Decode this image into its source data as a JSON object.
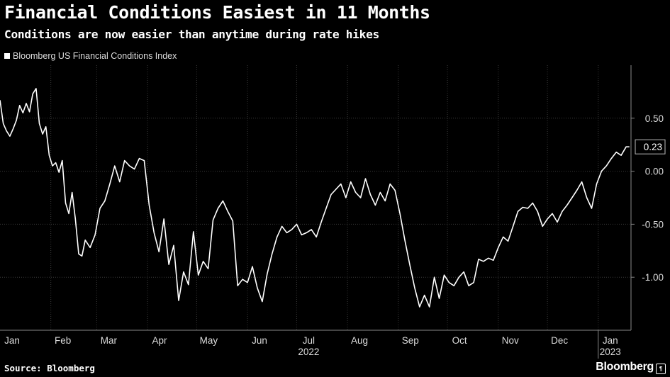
{
  "header": {
    "title": "Financial Conditions Easiest in 11 Months",
    "subtitle": "Conditions are now easier than anytime during rate hikes"
  },
  "legend": {
    "label": "Bloomberg US Financial Conditions Index",
    "color": "#ffffff"
  },
  "footer": {
    "source": "Source: Bloomberg",
    "brand": "Bloomberg",
    "brand_mark_icon": "bloomberg-pilcrow-icon"
  },
  "colors": {
    "background": "#000000",
    "line": "#ffffff",
    "grid": "#3a3a3a",
    "axis_text": "#dcdcdc"
  },
  "chart_data": {
    "type": "line",
    "title": "Financial Conditions Easiest in 11 Months",
    "subtitle": "Conditions are now easier than anytime during rate hikes",
    "xlabel": "",
    "ylabel": "",
    "ylim": [
      -1.5,
      1.0
    ],
    "yticks": [
      0.5,
      0.0,
      -0.5,
      -1.0
    ],
    "ytick_labels": [
      "0.50",
      "0.00",
      "-0.50",
      "-1.00"
    ],
    "x_range": [
      "2022-01-01",
      "2023-01-21"
    ],
    "xticks": [
      {
        "label": "Jan",
        "date": "2022-01-01"
      },
      {
        "label": "Feb",
        "date": "2022-02-01"
      },
      {
        "label": "Mar",
        "date": "2022-03-01"
      },
      {
        "label": "Apr",
        "date": "2022-04-01"
      },
      {
        "label": "May",
        "date": "2022-05-01"
      },
      {
        "label": "Jun",
        "date": "2022-06-01"
      },
      {
        "label": "Jul",
        "date": "2022-07-01"
      },
      {
        "label": "Aug",
        "date": "2022-08-01"
      },
      {
        "label": "Sep",
        "date": "2022-09-01"
      },
      {
        "label": "Oct",
        "date": "2022-10-01"
      },
      {
        "label": "Nov",
        "date": "2022-11-01"
      },
      {
        "label": "Dec",
        "date": "2022-12-01"
      },
      {
        "label": "Jan",
        "date": "2023-01-01"
      }
    ],
    "year_labels": [
      {
        "label": "2022",
        "date": "2022-07-01"
      },
      {
        "label": "2023",
        "date": "2023-01-01"
      }
    ],
    "grid": true,
    "last_value_label": "0.23",
    "series": [
      {
        "name": "Bloomberg US Financial Conditions Index",
        "x": [
          "2022-01-01",
          "2022-01-03",
          "2022-01-05",
          "2022-01-07",
          "2022-01-09",
          "2022-01-11",
          "2022-01-13",
          "2022-01-15",
          "2022-01-17",
          "2022-01-19",
          "2022-01-21",
          "2022-01-23",
          "2022-01-25",
          "2022-01-27",
          "2022-01-29",
          "2022-01-31",
          "2022-02-02",
          "2022-02-04",
          "2022-02-06",
          "2022-02-08",
          "2022-02-10",
          "2022-02-12",
          "2022-02-14",
          "2022-02-16",
          "2022-02-18",
          "2022-02-20",
          "2022-02-22",
          "2022-02-25",
          "2022-02-28",
          "2022-03-03",
          "2022-03-06",
          "2022-03-09",
          "2022-03-12",
          "2022-03-15",
          "2022-03-18",
          "2022-03-21",
          "2022-03-24",
          "2022-03-27",
          "2022-03-30",
          "2022-04-02",
          "2022-04-05",
          "2022-04-08",
          "2022-04-11",
          "2022-04-14",
          "2022-04-17",
          "2022-04-20",
          "2022-04-23",
          "2022-04-26",
          "2022-04-29",
          "2022-05-02",
          "2022-05-05",
          "2022-05-08",
          "2022-05-11",
          "2022-05-14",
          "2022-05-17",
          "2022-05-20",
          "2022-05-23",
          "2022-05-26",
          "2022-05-29",
          "2022-06-01",
          "2022-06-04",
          "2022-06-07",
          "2022-06-10",
          "2022-06-13",
          "2022-06-16",
          "2022-06-19",
          "2022-06-22",
          "2022-06-25",
          "2022-06-28",
          "2022-07-01",
          "2022-07-04",
          "2022-07-07",
          "2022-07-10",
          "2022-07-13",
          "2022-07-16",
          "2022-07-19",
          "2022-07-22",
          "2022-07-25",
          "2022-07-28",
          "2022-07-31",
          "2022-08-03",
          "2022-08-06",
          "2022-08-09",
          "2022-08-12",
          "2022-08-15",
          "2022-08-18",
          "2022-08-21",
          "2022-08-24",
          "2022-08-27",
          "2022-08-30",
          "2022-09-02",
          "2022-09-05",
          "2022-09-08",
          "2022-09-11",
          "2022-09-14",
          "2022-09-17",
          "2022-09-20",
          "2022-09-23",
          "2022-09-26",
          "2022-09-29",
          "2022-10-02",
          "2022-10-05",
          "2022-10-08",
          "2022-10-11",
          "2022-10-14",
          "2022-10-17",
          "2022-10-20",
          "2022-10-23",
          "2022-10-26",
          "2022-10-29",
          "2022-11-01",
          "2022-11-04",
          "2022-11-07",
          "2022-11-10",
          "2022-11-13",
          "2022-11-16",
          "2022-11-19",
          "2022-11-22",
          "2022-11-25",
          "2022-11-28",
          "2022-12-01",
          "2022-12-04",
          "2022-12-07",
          "2022-12-10",
          "2022-12-13",
          "2022-12-16",
          "2022-12-19",
          "2022-12-22",
          "2022-12-25",
          "2022-12-28",
          "2022-12-31",
          "2023-01-03",
          "2023-01-06",
          "2023-01-09",
          "2023-01-12",
          "2023-01-15",
          "2023-01-18",
          "2023-01-20"
        ],
        "values": [
          0.67,
          0.45,
          0.38,
          0.33,
          0.4,
          0.48,
          0.62,
          0.55,
          0.64,
          0.56,
          0.73,
          0.78,
          0.45,
          0.35,
          0.42,
          0.15,
          0.05,
          0.08,
          -0.01,
          0.1,
          -0.3,
          -0.4,
          -0.2,
          -0.45,
          -0.78,
          -0.8,
          -0.65,
          -0.72,
          -0.6,
          -0.35,
          -0.28,
          -0.12,
          0.05,
          -0.1,
          0.1,
          0.05,
          0.02,
          0.12,
          0.1,
          -0.32,
          -0.58,
          -0.76,
          -0.45,
          -0.88,
          -0.7,
          -1.22,
          -0.95,
          -1.07,
          -0.57,
          -0.98,
          -0.85,
          -0.92,
          -0.46,
          -0.35,
          -0.28,
          -0.38,
          -0.47,
          -1.08,
          -1.02,
          -1.05,
          -0.9,
          -1.1,
          -1.23,
          -0.97,
          -0.78,
          -0.62,
          -0.52,
          -0.58,
          -0.55,
          -0.5,
          -0.6,
          -0.58,
          -0.55,
          -0.62,
          -0.48,
          -0.35,
          -0.22,
          -0.17,
          -0.12,
          -0.25,
          -0.1,
          -0.2,
          -0.25,
          -0.07,
          -0.22,
          -0.32,
          -0.2,
          -0.28,
          -0.12,
          -0.18,
          -0.4,
          -0.65,
          -0.88,
          -1.1,
          -1.28,
          -1.17,
          -1.28,
          -1.0,
          -1.2,
          -0.98,
          -1.05,
          -1.08,
          -1.0,
          -0.95,
          -1.08,
          -1.05,
          -0.83,
          -0.85,
          -0.82,
          -0.84,
          -0.72,
          -0.62,
          -0.66,
          -0.52,
          -0.38,
          -0.34,
          -0.35,
          -0.3,
          -0.38,
          -0.52,
          -0.45,
          -0.4,
          -0.48,
          -0.38,
          -0.32,
          -0.25,
          -0.18,
          -0.1,
          -0.25,
          -0.35,
          -0.12,
          0.0,
          0.05,
          0.12,
          0.18,
          0.15,
          0.23,
          0.23
        ]
      }
    ]
  }
}
